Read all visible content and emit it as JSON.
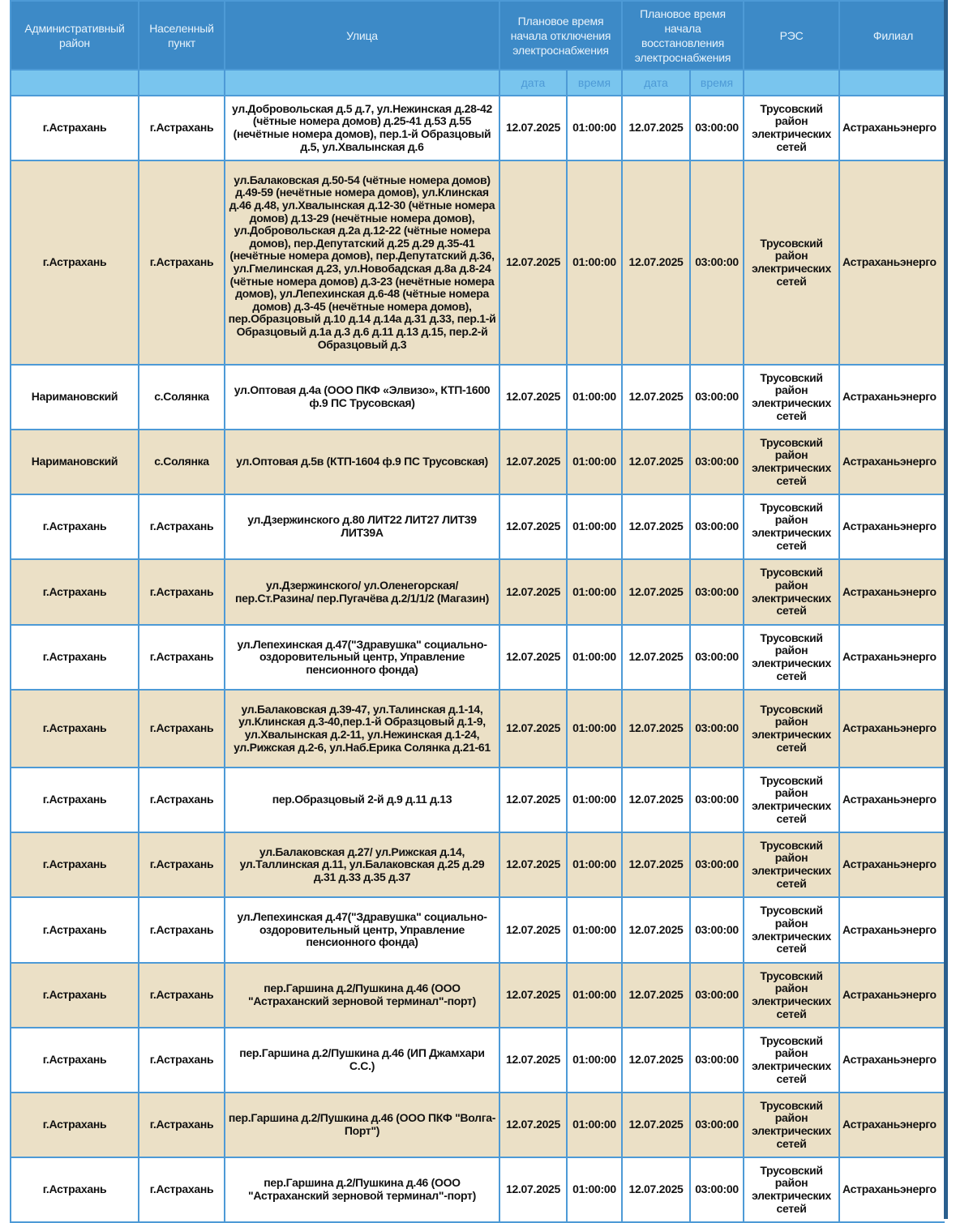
{
  "header": {
    "district": "Административный район",
    "locality": "Населенный пункт",
    "street": "Улица",
    "off_time": "Плановое время начала отключения электроснабжения",
    "on_time": "Плановое время начала восстановления электроснабжения",
    "res": "РЭС",
    "branch": "Филиал",
    "sub_date": "дата",
    "sub_time": "время"
  },
  "colors": {
    "header": "#3d8ac7",
    "subheader": "#79c5ee",
    "row_alt": "#ebe0c6",
    "border": "#4d9ad6"
  },
  "rows": [
    {
      "district": "г.Астрахань",
      "locality": "г.Астрахань",
      "street": "ул.Добровольская д.5 д.7, ул.Нежинская д.28-42 (чётные номера домов) д.25-41 д.53 д.55 (нечётные номера домов), пер.1-й Образцовый д.5, ул.Хвалынская д.6",
      "off_date": "12.07.2025",
      "off_time": "01:00:00",
      "on_date": "12.07.2025",
      "on_time": "03:00:00",
      "res": "Трусовский район электрических сетей",
      "branch": "Астраханьэнерго"
    },
    {
      "district": "г.Астрахань",
      "locality": "г.Астрахань",
      "street": "ул.Балаковская д.50-54 (чётные номера домов) д.49-59 (нечётные номера домов), ул.Клинская д.46 д.48, ул.Хвалынская д.12-30 (чётные номера домов) д.13-29 (нечётные номера домов), ул.Добровольская д.2а д.12-22 (чётные номера домов), пер.Депутатский д.25 д.29 д.35-41 (нечётные номера домов), пер.Депутатский д.36, ул.Гмелинская д.23, ул.Новобадская д.8а д.8-24 (чётные номера домов) д.3-23 (нечётные номера домов), ул.Лепехинская д.6-48 (чётные номера домов) д.3-45 (нечётные номера домов), пер.Образцовый д.10 д.14 д.14а д.31 д.33, пер.1-й Образцовый д.1а д.3 д.6 д.11 д.13 д.15, пер.2-й Образцовый д.3",
      "off_date": "12.07.2025",
      "off_time": "01:00:00",
      "on_date": "12.07.2025",
      "on_time": "03:00:00",
      "res": "Трусовский район электрических сетей",
      "branch": "Астраханьэнерго"
    },
    {
      "district": "Наримановский",
      "locality": "с.Солянка",
      "street": "ул.Оптовая д.4а (ООО ПКФ «Элвизо», КТП-1600 ф.9 ПС Трусовская)",
      "off_date": "12.07.2025",
      "off_time": "01:00:00",
      "on_date": "12.07.2025",
      "on_time": "03:00:00",
      "res": "Трусовский район электрических сетей",
      "branch": "Астраханьэнерго"
    },
    {
      "district": "Наримановский",
      "locality": "с.Солянка",
      "street": "ул.Оптовая д.5в (КТП-1604 ф.9 ПС Трусовская)",
      "off_date": "12.07.2025",
      "off_time": "01:00:00",
      "on_date": "12.07.2025",
      "on_time": "03:00:00",
      "res": "Трусовский район электрических сетей",
      "branch": "Астраханьэнерго"
    },
    {
      "district": "г.Астрахань",
      "locality": "г.Астрахань",
      "street": "ул.Дзержинского д.80 ЛИТ22 ЛИТ27 ЛИТ39 ЛИТ39А",
      "off_date": "12.07.2025",
      "off_time": "01:00:00",
      "on_date": "12.07.2025",
      "on_time": "03:00:00",
      "res": "Трусовский район электрических сетей",
      "branch": "Астраханьэнерго"
    },
    {
      "district": "г.Астрахань",
      "locality": "г.Астрахань",
      "street": "ул.Дзержинского/ ул.Оленегорская/ пер.Ст.Разина/ пер.Пугачёва д.2/1/1/2 (Магазин)",
      "off_date": "12.07.2025",
      "off_time": "01:00:00",
      "on_date": "12.07.2025",
      "on_time": "03:00:00",
      "res": "Трусовский район электрических сетей",
      "branch": "Астраханьэнерго"
    },
    {
      "district": "г.Астрахань",
      "locality": "г.Астрахань",
      "street": "ул.Лепехинская д.47(\"Здравушка\" социально-оздоровительный центр, Управление пенсионного фонда)",
      "off_date": "12.07.2025",
      "off_time": "01:00:00",
      "on_date": "12.07.2025",
      "on_time": "03:00:00",
      "res": "Трусовский район электрических сетей",
      "branch": "Астраханьэнерго"
    },
    {
      "district": "г.Астрахань",
      "locality": "г.Астрахань",
      "street": "ул.Балаковская д.39-47, ул.Талинская д.1-14, ул.Клинская д.3-40,пер.1-й Образцовый д.1-9, ул.Хвалынская д.2-11, ул.Нежинская д.1-24, ул.Рижская д.2-6, ул.Наб.Ерика Солянка д.21-61",
      "off_date": "12.07.2025",
      "off_time": "01:00:00",
      "on_date": "12.07.2025",
      "on_time": "03:00:00",
      "res": "Трусовский район электрических сетей",
      "branch": "Астраханьэнерго"
    },
    {
      "district": "г.Астрахань",
      "locality": "г.Астрахань",
      "street": "пер.Образцовый 2-й д.9 д.11 д.13",
      "off_date": "12.07.2025",
      "off_time": "01:00:00",
      "on_date": "12.07.2025",
      "on_time": "03:00:00",
      "res": "Трусовский район электрических сетей",
      "branch": "Астраханьэнерго"
    },
    {
      "district": "г.Астрахань",
      "locality": "г.Астрахань",
      "street": "ул.Балаковская д.27/ ул.Рижская д.14, ул.Таллинская д.11, ул.Балаковская д.25 д.29 д.31 д.33 д.35 д.37",
      "off_date": "12.07.2025",
      "off_time": "01:00:00",
      "on_date": "12.07.2025",
      "on_time": "03:00:00",
      "res": "Трусовский район электрических сетей",
      "branch": "Астраханьэнерго"
    },
    {
      "district": "г.Астрахань",
      "locality": "г.Астрахань",
      "street": "ул.Лепехинская д.47(\"Здравушка\" социально-оздоровительный центр, Управление пенсионного фонда)",
      "off_date": "12.07.2025",
      "off_time": "01:00:00",
      "on_date": "12.07.2025",
      "on_time": "03:00:00",
      "res": "Трусовский район электрических сетей",
      "branch": "Астраханьэнерго"
    },
    {
      "district": "г.Астрахань",
      "locality": "г.Астрахань",
      "street": "пер.Гаршина д.2/Пушкина д.46 (ООО \"Астраханский зерновой терминал\"-порт)",
      "off_date": "12.07.2025",
      "off_time": "01:00:00",
      "on_date": "12.07.2025",
      "on_time": "03:00:00",
      "res": "Трусовский район электрических сетей",
      "branch": "Астраханьэнерго"
    },
    {
      "district": "г.Астрахань",
      "locality": "г.Астрахань",
      "street": "пер.Гаршина д.2/Пушкина д.46 (ИП Джамхари С.С.)",
      "off_date": "12.07.2025",
      "off_time": "01:00:00",
      "on_date": "12.07.2025",
      "on_time": "03:00:00",
      "res": "Трусовский район электрических сетей",
      "branch": "Астраханьэнерго"
    },
    {
      "district": "г.Астрахань",
      "locality": "г.Астрахань",
      "street": "пер.Гаршина д.2/Пушкина д.46 (ООО ПКФ \"Волга-Порт\")",
      "off_date": "12.07.2025",
      "off_time": "01:00:00",
      "on_date": "12.07.2025",
      "on_time": "03:00:00",
      "res": "Трусовский район электрических сетей",
      "branch": "Астраханьэнерго"
    },
    {
      "district": "г.Астрахань",
      "locality": "г.Астрахань",
      "street": "пер.Гаршина д.2/Пушкина д.46 (ООО \"Астраханский зерновой терминал\"-порт)",
      "off_date": "12.07.2025",
      "off_time": "01:00:00",
      "on_date": "12.07.2025",
      "on_time": "03:00:00",
      "res": "Трусовский район электрических сетей",
      "branch": "Астраханьэнерго"
    }
  ]
}
